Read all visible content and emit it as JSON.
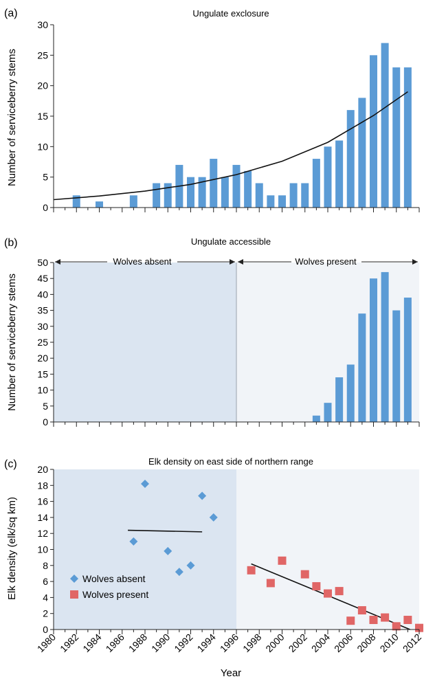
{
  "colors": {
    "bar": "#5b9bd5",
    "curve": "#111111",
    "wolves_absent_bg": "#dbe5f1",
    "wolves_present_bg": "#f1f4f8",
    "diamond": "#5b9bd5",
    "square": "#e06666"
  },
  "chart_data": [
    {
      "panel": "(a)",
      "type": "bar",
      "title": "Ungulate exclosure",
      "ylabel": "Number of serviceberry stems",
      "ylim": [
        0,
        30
      ],
      "yticks": [
        0,
        5,
        10,
        15,
        20,
        25,
        30
      ],
      "x": [
        1982,
        1984,
        1987,
        1989,
        1990,
        1991,
        1992,
        1993,
        1994,
        1995,
        1996,
        1997,
        1998,
        1999,
        2000,
        2001,
        2002,
        2003,
        2004,
        2005,
        2006,
        2007,
        2008,
        2009,
        2010,
        2011
      ],
      "values": [
        2,
        1,
        2,
        4,
        4,
        7,
        5,
        5,
        8,
        5,
        7,
        6,
        4,
        2,
        2,
        4,
        4,
        8,
        10,
        11,
        16,
        18,
        25,
        27,
        23,
        23
      ],
      "trendline": {
        "type": "exponential",
        "x": [
          1980,
          1984,
          1988,
          1992,
          1996,
          2000,
          2004,
          2008,
          2011
        ],
        "y": [
          1.3,
          1.9,
          2.7,
          3.8,
          5.4,
          7.6,
          10.7,
          15.1,
          19.0
        ]
      }
    },
    {
      "panel": "(b)",
      "type": "bar",
      "title": "Ungulate accessible",
      "ylabel": "Number of serviceberry stems",
      "ylim": [
        0,
        50
      ],
      "yticks": [
        0,
        5,
        10,
        15,
        20,
        25,
        30,
        35,
        40,
        45,
        50
      ],
      "x": [
        2003,
        2004,
        2005,
        2006,
        2007,
        2008,
        2009,
        2010,
        2011
      ],
      "values": [
        2,
        6,
        14,
        18,
        34,
        45,
        47,
        35,
        39
      ],
      "annotations": [
        "Wolves absent",
        "Wolves present"
      ]
    },
    {
      "panel": "(c)",
      "type": "scatter",
      "title": "Elk density on east side of northern range",
      "ylabel": "Elk density (elk/sq km)",
      "xlabel": "Year",
      "ylim": [
        0,
        20
      ],
      "yticks": [
        0,
        2,
        4,
        6,
        8,
        10,
        12,
        14,
        16,
        18,
        20
      ],
      "xticks": [
        1980,
        1982,
        1984,
        1986,
        1988,
        1990,
        1992,
        1994,
        1996,
        1998,
        2000,
        2002,
        2004,
        2006,
        2008,
        2010,
        2012
      ],
      "legend_position": "bottom-left",
      "series": [
        {
          "name": "Wolves absent",
          "marker": "diamond",
          "points": [
            [
              1987,
              11.0
            ],
            [
              1988,
              18.2
            ],
            [
              1990,
              9.8
            ],
            [
              1991,
              7.2
            ],
            [
              1992,
              8.0
            ],
            [
              1993,
              16.7
            ],
            [
              1994,
              14.0
            ]
          ],
          "trendline": [
            [
              1986.5,
              12.4
            ],
            [
              1993,
              12.2
            ]
          ]
        },
        {
          "name": "Wolves present",
          "marker": "square",
          "points": [
            [
              1997.3,
              7.4
            ],
            [
              1999,
              5.8
            ],
            [
              2000,
              8.6
            ],
            [
              2002,
              6.9
            ],
            [
              2003,
              5.4
            ],
            [
              2004,
              4.5
            ],
            [
              2005,
              4.8
            ],
            [
              2006,
              1.1
            ],
            [
              2007,
              2.4
            ],
            [
              2008,
              1.2
            ],
            [
              2009,
              1.5
            ],
            [
              2010,
              0.4
            ],
            [
              2011,
              1.2
            ],
            [
              2012,
              0.2
            ]
          ],
          "trendline": [
            [
              1997.3,
              8.2
            ],
            [
              2011.2,
              0.0
            ]
          ]
        }
      ]
    }
  ]
}
